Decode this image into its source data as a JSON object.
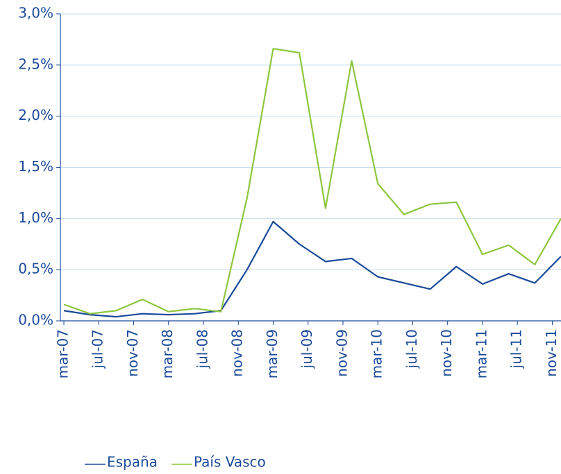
{
  "chart_data": {
    "type": "line",
    "x": [
      0,
      3,
      6,
      9,
      12,
      15,
      18,
      21,
      24,
      27,
      30,
      33,
      36,
      39,
      42,
      45,
      48,
      51,
      54,
      57
    ],
    "xlim": [
      0,
      57
    ],
    "xticks": [
      {
        "value": 0,
        "label": "mar-07"
      },
      {
        "value": 4,
        "label": "jul-07"
      },
      {
        "value": 8,
        "label": "nov-07"
      },
      {
        "value": 12,
        "label": "mar-08"
      },
      {
        "value": 16,
        "label": "jul-08"
      },
      {
        "value": 20,
        "label": "nov-08"
      },
      {
        "value": 24,
        "label": "mar-09"
      },
      {
        "value": 28,
        "label": "jul-09"
      },
      {
        "value": 32,
        "label": "nov-09"
      },
      {
        "value": 36,
        "label": "mar-10"
      },
      {
        "value": 40,
        "label": "jul-10"
      },
      {
        "value": 44,
        "label": "nov-10"
      },
      {
        "value": 48,
        "label": "mar-11"
      },
      {
        "value": 52,
        "label": "jul-11"
      },
      {
        "value": 56,
        "label": "nov-11"
      }
    ],
    "ylim": [
      0,
      3
    ],
    "yticks": [
      {
        "value": 0,
        "label": "0,0%"
      },
      {
        "value": 0.5,
        "label": "0,5%"
      },
      {
        "value": 1,
        "label": "1,0%"
      },
      {
        "value": 1.5,
        "label": "1,5%"
      },
      {
        "value": 2,
        "label": "2,0%"
      },
      {
        "value": 2.5,
        "label": "2,5%"
      },
      {
        "value": 3,
        "label": "3,0%"
      }
    ],
    "grid": true,
    "series": [
      {
        "name": "España",
        "color": "#1a4a9a",
        "values": [
          0.1,
          0.06,
          0.04,
          0.07,
          0.06,
          0.07,
          0.1,
          0.5,
          0.97,
          0.75,
          0.58,
          0.61,
          0.43,
          0.37,
          0.31,
          0.53,
          0.36,
          0.46,
          0.37,
          0.63
        ]
      },
      {
        "name": "País Vasco",
        "color": "#8cc63f",
        "values": [
          0.16,
          0.07,
          0.1,
          0.21,
          0.09,
          0.12,
          0.09,
          1.2,
          2.66,
          2.62,
          1.1,
          2.54,
          1.34,
          1.04,
          1.14,
          1.16,
          0.65,
          0.74,
          0.55,
          1.0
        ]
      }
    ]
  }
}
